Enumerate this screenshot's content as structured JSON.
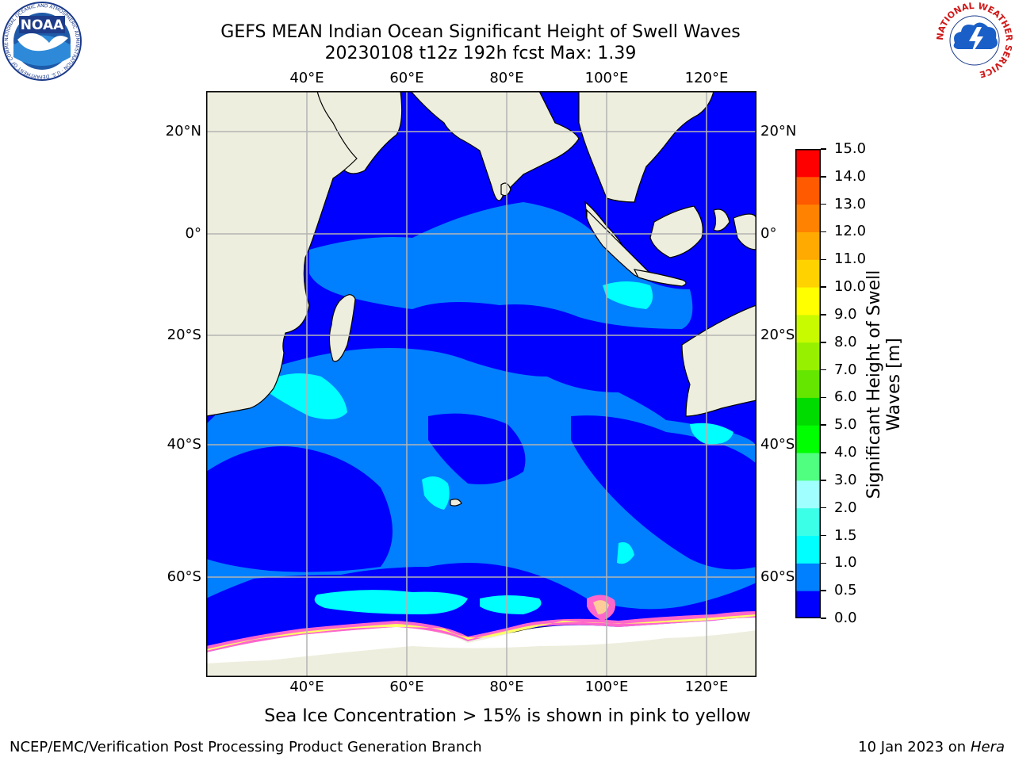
{
  "title": {
    "line1": "GEFS MEAN Indian Ocean Significant Height of Swell Waves",
    "line2": "20230108 t12z 192h fcst   Max: 1.39"
  },
  "logos": {
    "noaa": {
      "label": "NOAA",
      "ring_text": "NATIONAL OCEANIC AND ATMOSPHERIC ADMINISTRATION · U.S. DEPARTMENT OF COMMERCE"
    },
    "nws": {
      "ring_text": "NATIONAL WEATHER SERVICE"
    }
  },
  "map": {
    "lon_ticks": [
      "40°E",
      "60°E",
      "80°E",
      "100°E",
      "120°E"
    ],
    "lat_ticks": [
      "20°N",
      "0°",
      "20°S",
      "40°S",
      "60°S"
    ],
    "colors": {
      "land": "#eeeede",
      "band_0": "#0000ff",
      "band_1": "#0080ff",
      "band_2": "#00ffff",
      "ice_pink": "#ff66cc",
      "ice_yellow": "#ffff66",
      "ice_white": "#ffffff",
      "grid": "#b4b4b4"
    }
  },
  "colorbar": {
    "label": "Significant Height of Swell Waves [m]",
    "ticks": [
      "0.0",
      "0.5",
      "1.0",
      "1.5",
      "2.0",
      "3.0",
      "4.0",
      "5.0",
      "6.0",
      "7.0",
      "8.0",
      "9.0",
      "10.0",
      "11.0",
      "12.0",
      "13.0",
      "14.0",
      "15.0"
    ],
    "colors": [
      "#0000ff",
      "#0080ff",
      "#00ffff",
      "#3cffe8",
      "#a0ffff",
      "#50ff80",
      "#00ff00",
      "#00dc00",
      "#64e600",
      "#96f000",
      "#c8fa00",
      "#ffff00",
      "#ffd200",
      "#ffaa00",
      "#ff8200",
      "#ff5a00",
      "#ff0000"
    ]
  },
  "caption": "Sea Ice Concentration > 15% is shown in pink to yellow",
  "footer": {
    "left": "NCEP/EMC/Verification Post Processing Product Generation Branch",
    "right_date": "10 Jan 2023 on ",
    "right_host": "Hera"
  }
}
